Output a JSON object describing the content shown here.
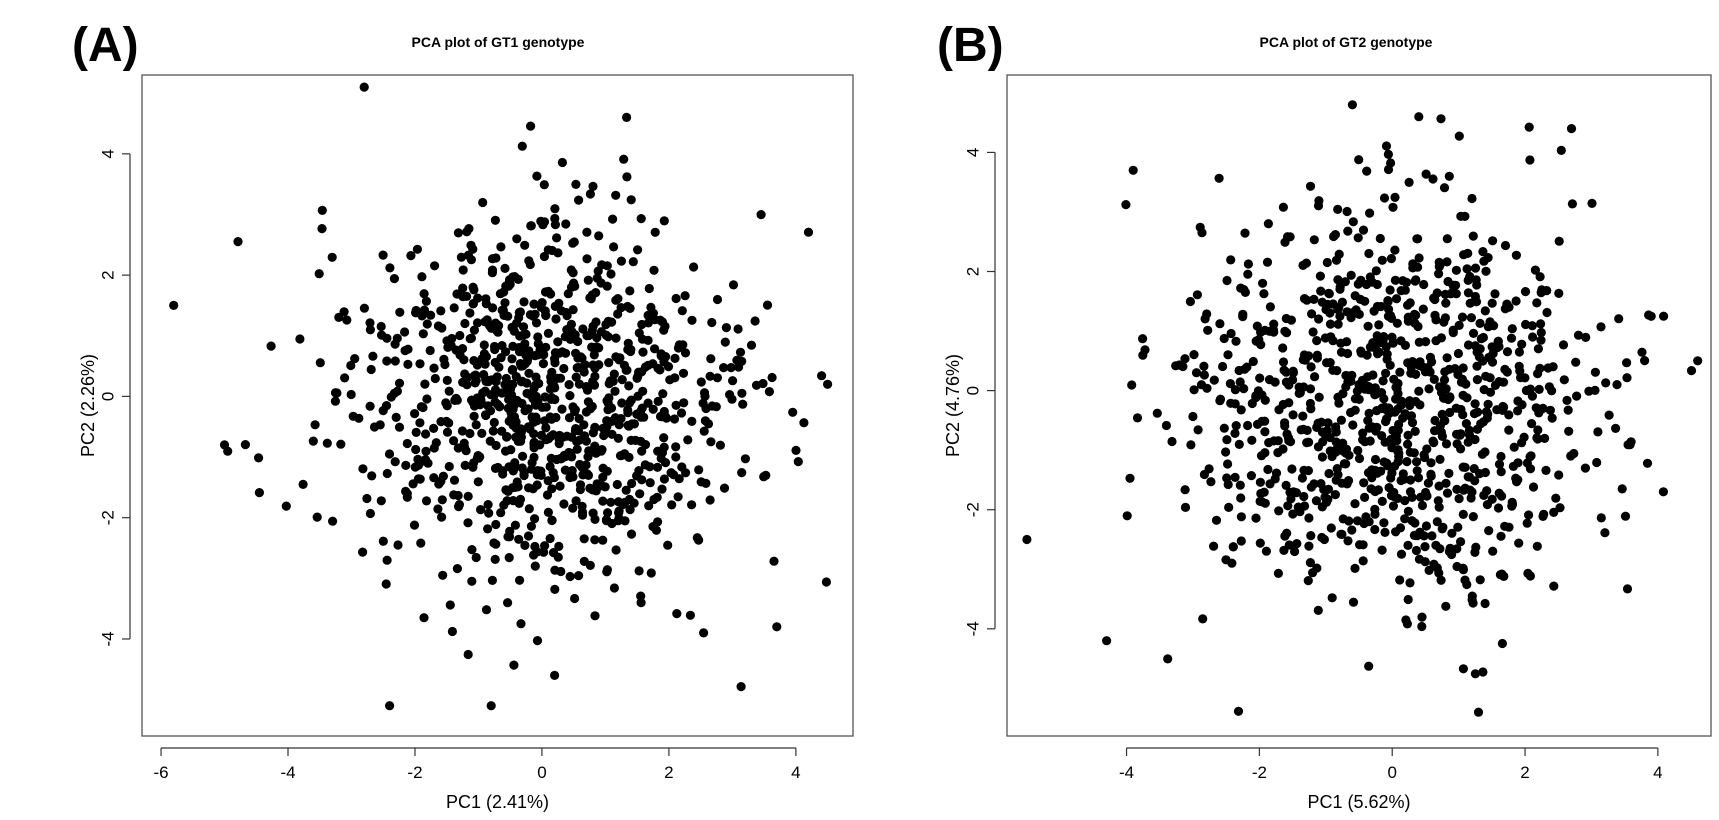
{
  "chart_data": [
    {
      "panel_label": "(A)",
      "type": "scatter",
      "title": "PCA plot of GT1 genotype",
      "xlabel": "PC1 (2.41%)",
      "ylabel": "PC2 (2.26%)",
      "xlim": [
        -6.3,
        4.9
      ],
      "ylim": [
        -5.6,
        5.3
      ],
      "xticks": [
        -6,
        -4,
        -2,
        0,
        2,
        4
      ],
      "yticks": [
        -4,
        -2,
        0,
        2,
        4
      ],
      "grid": false,
      "point_color": "#000000",
      "approx_point_count": 1000,
      "notable_points": [
        {
          "x": -5.8,
          "y": 1.5
        },
        {
          "x": -2.8,
          "y": 5.1
        },
        {
          "x": -2.4,
          "y": -5.1
        },
        {
          "x": -0.8,
          "y": -5.1
        },
        {
          "x": 4.5,
          "y": 0.2
        },
        {
          "x": 3.7,
          "y": -3.8
        },
        {
          "x": -5.0,
          "y": -0.8
        },
        {
          "x": 0.2,
          "y": -4.6
        }
      ],
      "distribution": {
        "mean_x": 0.0,
        "mean_y": -0.1,
        "sd_x": 1.55,
        "sd_y": 1.55
      }
    },
    {
      "panel_label": "(B)",
      "type": "scatter",
      "title": "PCA plot of GT2 genotype",
      "xlabel": "PC1 (5.62%)",
      "ylabel": "PC2 (4.76%)",
      "xlim": [
        -5.8,
        4.8
      ],
      "ylim": [
        -5.8,
        5.3
      ],
      "xticks": [
        -4,
        -2,
        0,
        2,
        4
      ],
      "yticks": [
        -4,
        -2,
        0,
        2,
        4
      ],
      "grid": false,
      "point_color": "#000000",
      "approx_point_count": 1000,
      "notable_points": [
        {
          "x": -5.5,
          "y": -2.5
        },
        {
          "x": -0.6,
          "y": 4.8
        },
        {
          "x": 0.4,
          "y": 4.6
        },
        {
          "x": 2.7,
          "y": 4.4
        },
        {
          "x": 1.3,
          "y": -5.4
        },
        {
          "x": -4.3,
          "y": -4.2
        },
        {
          "x": 4.6,
          "y": 0.5
        },
        {
          "x": -3.9,
          "y": 3.7
        }
      ],
      "distribution": {
        "mean_x": 0.0,
        "mean_y": -0.2,
        "sd_x": 1.6,
        "sd_y": 1.6
      }
    }
  ]
}
